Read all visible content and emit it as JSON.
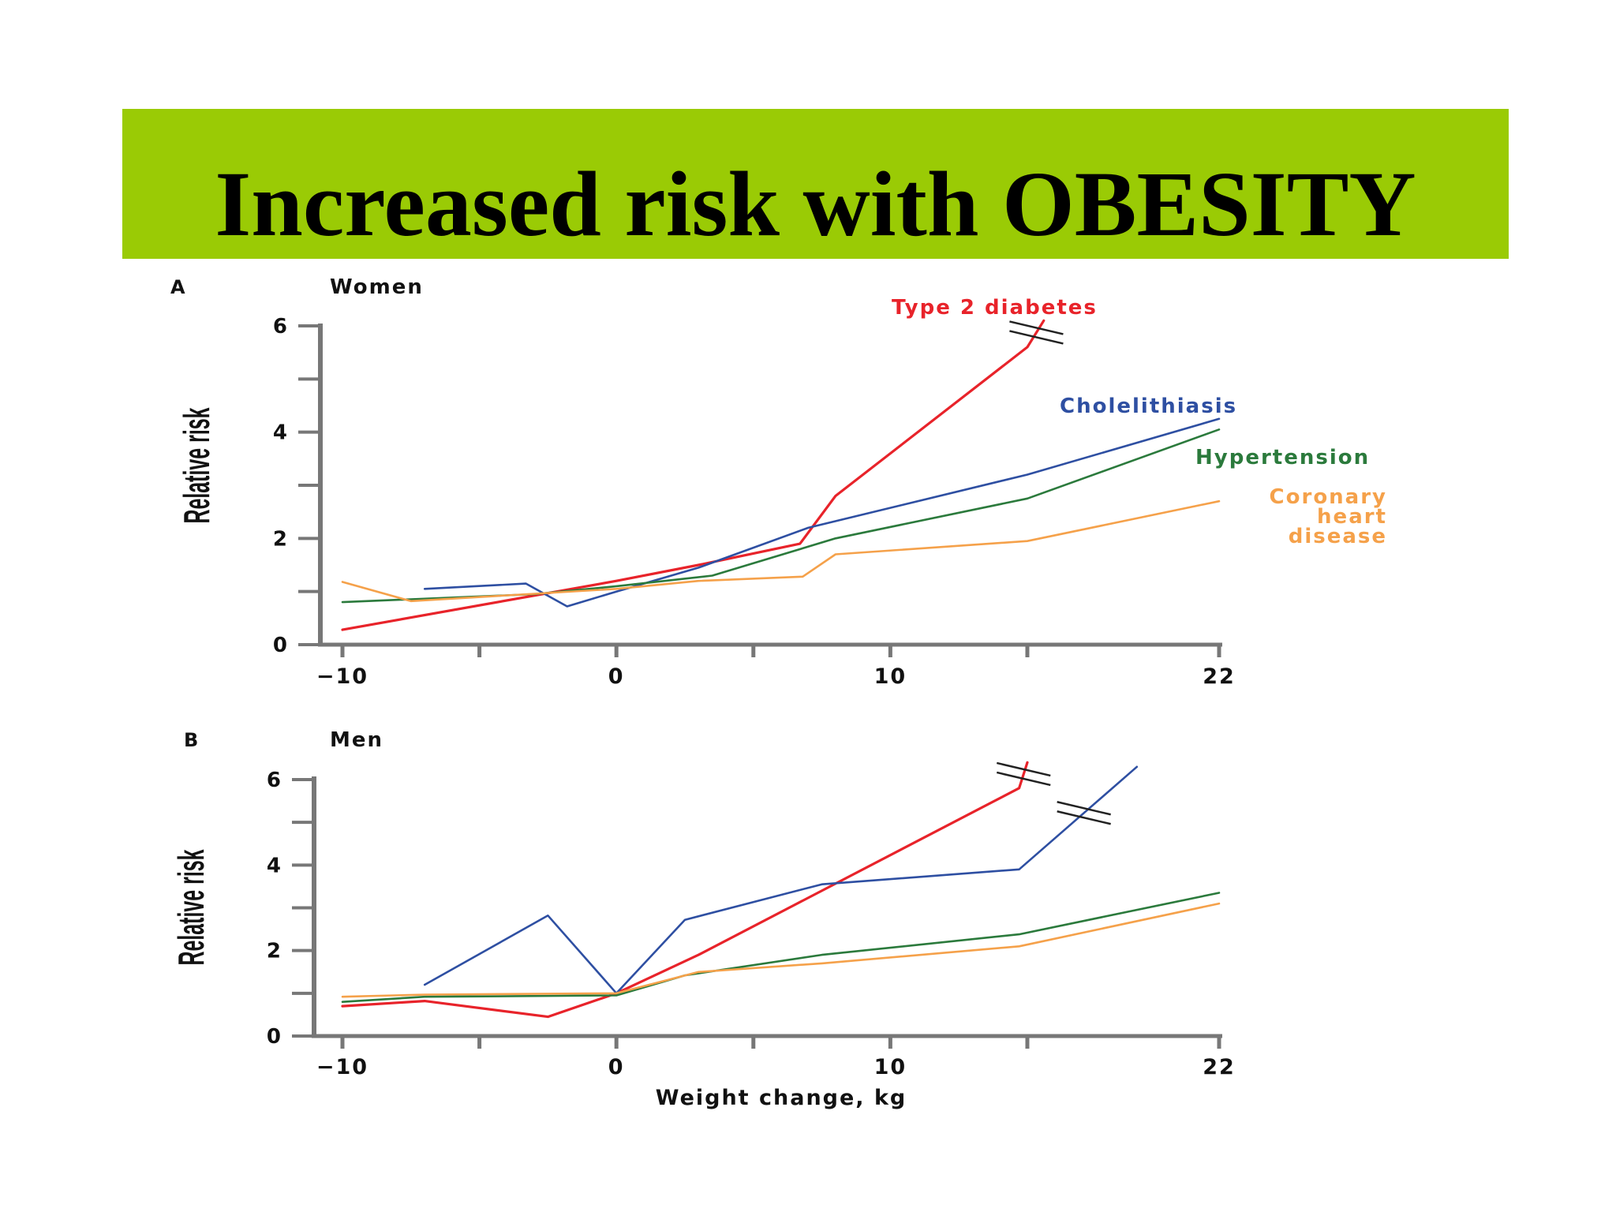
{
  "page": {
    "title": "Increased risk with OBESITY",
    "colors": {
      "banner": "#9acb05",
      "title": "#000000"
    }
  },
  "chart_data": [
    {
      "type": "line",
      "panel_letter": "A",
      "panel_title": "Women",
      "xlabel": "",
      "ylabel": "Relative risk",
      "xlim": [
        -10,
        22
      ],
      "ylim": [
        0,
        6
      ],
      "x_ticks": [
        -10,
        0,
        10,
        22
      ],
      "y_ticks": [
        0,
        2,
        4,
        6
      ],
      "grid": false,
      "legend": "inline labels at right",
      "series": [
        {
          "name": "Type 2 diabetes",
          "color": "#e8232a",
          "points": [
            [
              -10,
              0.28
            ],
            [
              0,
              1.2
            ],
            [
              3,
              1.5
            ],
            [
              6.7,
              1.9
            ],
            [
              8,
              2.8
            ],
            [
              15,
              5.6
            ],
            [
              15.6,
              6.1
            ]
          ],
          "break_mark": true
        },
        {
          "name": "Cholelithiasis",
          "color": "#2e4fa2",
          "points": [
            [
              -7,
              1.05
            ],
            [
              -3.3,
              1.15
            ],
            [
              -1.8,
              0.72
            ],
            [
              0,
              1.0
            ],
            [
              3,
              1.45
            ],
            [
              7,
              2.2
            ],
            [
              15,
              3.2
            ],
            [
              22,
              4.25
            ]
          ]
        },
        {
          "name": "Hypertension",
          "color": "#2b7a3c",
          "points": [
            [
              -10,
              0.8
            ],
            [
              -3,
              0.95
            ],
            [
              0,
              1.1
            ],
            [
              3.5,
              1.3
            ],
            [
              8,
              2.0
            ],
            [
              15,
              2.75
            ],
            [
              22,
              4.05
            ]
          ]
        },
        {
          "name": "Coronary heart disease",
          "label_lines": [
            "Coronary",
            "heart",
            "disease"
          ],
          "color": "#f5a14a",
          "points": [
            [
              -10,
              1.18
            ],
            [
              -7.5,
              0.82
            ],
            [
              0,
              1.05
            ],
            [
              3,
              1.2
            ],
            [
              6.8,
              1.28
            ],
            [
              8,
              1.7
            ],
            [
              15,
              1.95
            ],
            [
              22,
              2.7
            ]
          ]
        }
      ]
    },
    {
      "type": "line",
      "panel_letter": "B",
      "panel_title": "Men",
      "xlabel": "Weight change, kg",
      "ylabel": "Relative risk",
      "xlim": [
        -10,
        22
      ],
      "ylim": [
        0,
        6
      ],
      "x_ticks": [
        -10,
        0,
        10,
        22
      ],
      "y_ticks": [
        0,
        2,
        4,
        6
      ],
      "grid": false,
      "legend": "none",
      "series": [
        {
          "color": "#e8232a",
          "points": [
            [
              -10,
              0.7
            ],
            [
              -7,
              0.82
            ],
            [
              -2.5,
              0.45
            ],
            [
              0,
              1.0
            ],
            [
              3,
              1.9
            ],
            [
              14.7,
              5.8
            ],
            [
              15,
              6.4
            ]
          ],
          "break_mark": true
        },
        {
          "color": "#2e4fa2",
          "points": [
            [
              -7,
              1.2
            ],
            [
              -2.5,
              2.82
            ],
            [
              0,
              1.0
            ],
            [
              2.5,
              2.72
            ],
            [
              7.5,
              3.55
            ],
            [
              14.7,
              3.9
            ],
            [
              19,
              6.3
            ]
          ],
          "break_mark": true
        },
        {
          "color": "#2b7a3c",
          "points": [
            [
              -10,
              0.8
            ],
            [
              -7,
              0.92
            ],
            [
              0,
              0.95
            ],
            [
              2.5,
              1.42
            ],
            [
              7.5,
              1.9
            ],
            [
              14.7,
              2.38
            ],
            [
              22,
              3.35
            ]
          ]
        },
        {
          "color": "#f5a14a",
          "points": [
            [
              -10,
              0.92
            ],
            [
              -7,
              0.97
            ],
            [
              0,
              1.0
            ],
            [
              3,
              1.5
            ],
            [
              7.5,
              1.7
            ],
            [
              14.7,
              2.1
            ],
            [
              22,
              3.1
            ]
          ]
        }
      ]
    }
  ]
}
